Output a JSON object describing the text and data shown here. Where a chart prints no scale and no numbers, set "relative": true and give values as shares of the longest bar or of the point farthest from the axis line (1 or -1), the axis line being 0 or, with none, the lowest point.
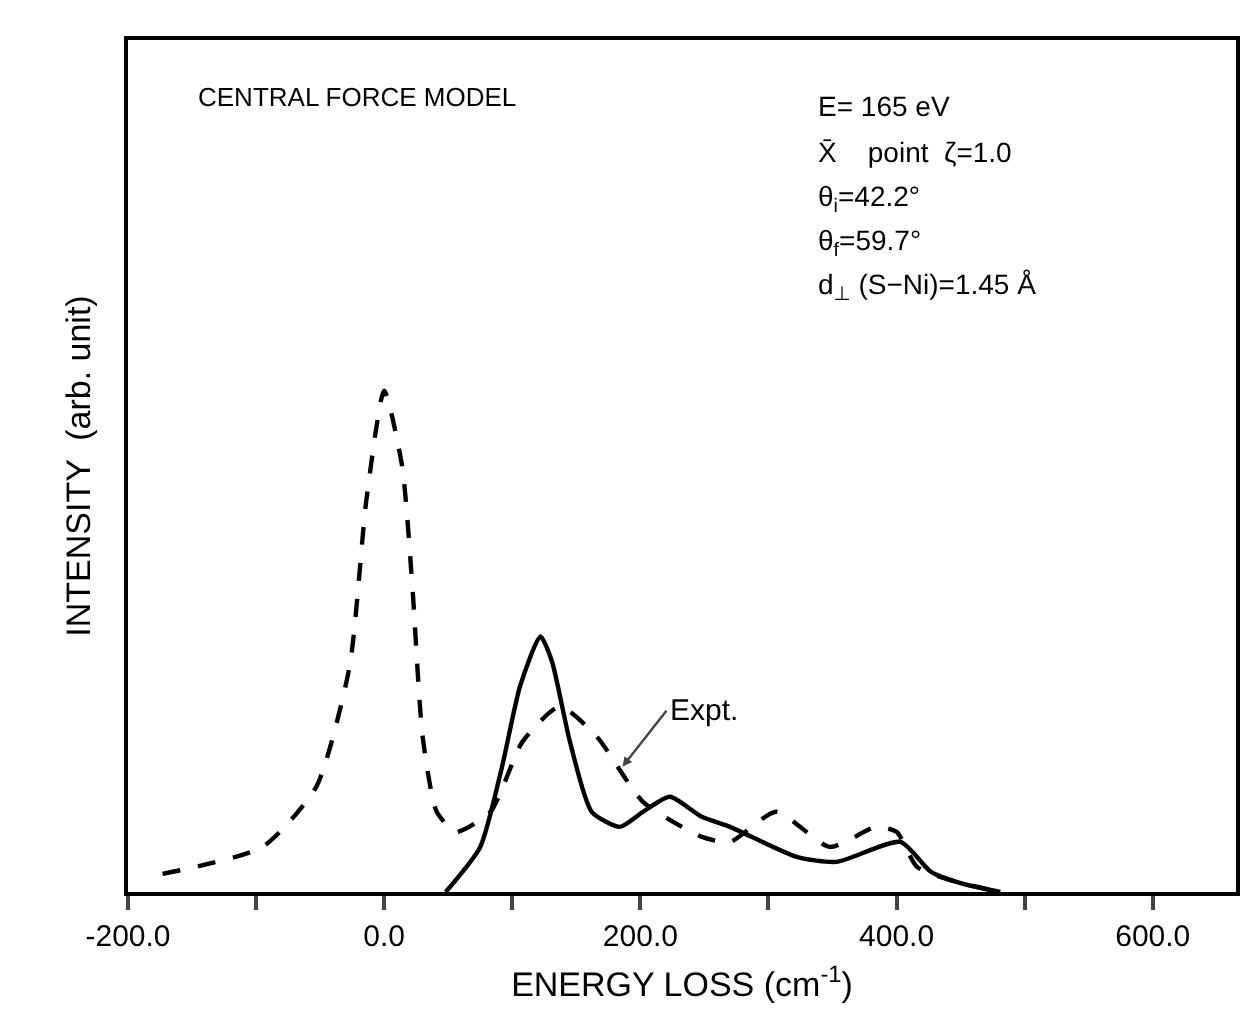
{
  "chart_data": {
    "type": "line",
    "relative": true,
    "xlabel": "ENERGY LOSS (cm$^{-1}$)",
    "ylabel": "INTENSITY  (arb. unit)",
    "xlim": [
      -200,
      665
    ],
    "xticks": [
      {
        "value": -200,
        "label": "-200.0"
      },
      {
        "value": -100,
        "label": null
      },
      {
        "value": 0,
        "label": "0.0"
      },
      {
        "value": 100,
        "label": null
      },
      {
        "value": 200,
        "label": "200.0"
      },
      {
        "value": 300,
        "label": null
      },
      {
        "value": 400,
        "label": "400.0"
      },
      {
        "value": 500,
        "label": null
      },
      {
        "value": 600,
        "label": "600.0"
      }
    ],
    "marker": "none",
    "annotations": [
      "CENTRAL FORCE MODEL",
      "E= 165 eV",
      "X̄    point  ζ=1.0",
      "θ$_{i}$=42.2°",
      "θ$_{f}$=59.7°",
      "d$_{⊥}$ (S−Ni)=1.45 Å",
      {
        "text": "Expt.",
        "x": 186,
        "y": 0.25
      }
    ],
    "series": [
      {
        "color": "#000000",
        "line_style": "dashed",
        "x": [
          -173,
          -95,
          -53,
          -27,
          -14,
          0,
          14,
          22,
          30,
          41,
          56,
          83,
          108,
          137,
          166,
          202,
          248,
          270,
          306,
          348,
          384,
          400,
          416,
          447,
          481
        ],
        "values": [
          0.036,
          0.09,
          0.21,
          0.45,
          0.78,
          1.0,
          0.85,
          0.61,
          0.31,
          0.16,
          0.12,
          0.16,
          0.3,
          0.37,
          0.31,
          0.18,
          0.11,
          0.1,
          0.16,
          0.09,
          0.13,
          0.12,
          0.05,
          0.02,
          0
        ]
      },
      {
        "color": "#000000",
        "line_style": "solid",
        "x": [
          48,
          75,
          92,
          106,
          122,
          131,
          145,
          162,
          184,
          202,
          223,
          248,
          270,
          322,
          353,
          403,
          427,
          452,
          481
        ],
        "values": [
          0,
          0.09,
          0.25,
          0.41,
          0.51,
          0.46,
          0.3,
          0.16,
          0.13,
          0.16,
          0.19,
          0.15,
          0.13,
          0.07,
          0.06,
          0.1,
          0.04,
          0.016,
          0
        ]
      }
    ]
  }
}
